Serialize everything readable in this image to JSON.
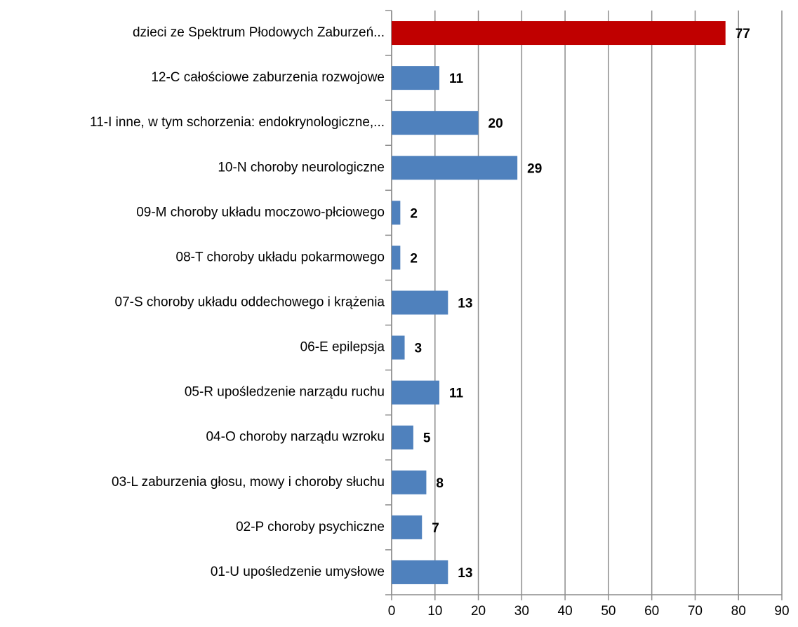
{
  "chart_data": {
    "type": "bar",
    "orientation": "horizontal",
    "categories": [
      "dzieci ze Spektrum Płodowych Zaburzeń...",
      "12-C całościowe zaburzenia rozwojowe",
      "11-I inne, w tym schorzenia: endokrynologiczne,...",
      "10-N choroby neurologiczne",
      "09-M choroby układu moczowo-płciowego",
      "08-T  choroby układu pokarmowego",
      "07-S  choroby układu oddechowego i krążenia",
      "06-E epilepsja",
      "05-R upośledzenie narządu ruchu",
      "04-O choroby narządu wzroku",
      "03-L zaburzenia głosu, mowy i choroby słuchu",
      "02-P choroby psychiczne",
      "01-U upośledzenie umysłowe"
    ],
    "values": [
      77,
      11,
      20,
      29,
      2,
      2,
      13,
      3,
      11,
      5,
      8,
      7,
      13
    ],
    "colors": [
      "#c00000",
      "#4f81bd",
      "#4f81bd",
      "#4f81bd",
      "#4f81bd",
      "#4f81bd",
      "#4f81bd",
      "#4f81bd",
      "#4f81bd",
      "#4f81bd",
      "#4f81bd",
      "#4f81bd",
      "#4f81bd"
    ],
    "xlim": [
      0,
      90
    ],
    "xticks": [
      0,
      10,
      20,
      30,
      40,
      50,
      60,
      70,
      80,
      90
    ],
    "grid": true
  }
}
